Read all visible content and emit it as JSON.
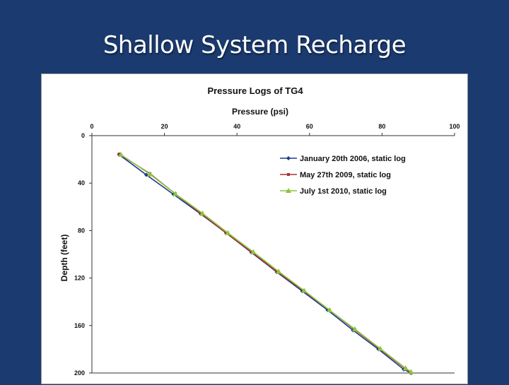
{
  "slide": {
    "title": "Shallow System Recharge"
  },
  "colors": {
    "background": "#1b3a6f",
    "series1": "#1f3a8c",
    "series2": "#a83232",
    "series3": "#8cc63f"
  },
  "chart_data": {
    "type": "line",
    "title": "Pressure Logs of TG4",
    "xlabel": "Pressure (psi)",
    "ylabel": "Depth (feet)",
    "xlim": [
      0,
      100
    ],
    "ylim": [
      0,
      200
    ],
    "y_inverted": true,
    "x_axis_position": "top",
    "xticks": [
      0,
      20,
      40,
      60,
      80,
      100
    ],
    "yticks": [
      0,
      40,
      80,
      120,
      160,
      200
    ],
    "legend_position": "top-right",
    "series": [
      {
        "name": "January 20th 2006, static log",
        "color": "#1f3a8c",
        "marker": "diamond",
        "points": [
          [
            7.5,
            16
          ],
          [
            15,
            33
          ],
          [
            22.5,
            49.5
          ],
          [
            30,
            66
          ],
          [
            37,
            82
          ],
          [
            44,
            98.5
          ],
          [
            51,
            115
          ],
          [
            58,
            131
          ],
          [
            65,
            147
          ],
          [
            72,
            164
          ],
          [
            79,
            180
          ],
          [
            86,
            197
          ],
          [
            88,
            200
          ]
        ]
      },
      {
        "name": "May 27th 2009, static log",
        "color": "#a83232",
        "marker": "square",
        "points": [
          [
            7.5,
            15.5
          ],
          [
            16,
            32
          ],
          [
            23,
            49
          ],
          [
            30,
            65.5
          ],
          [
            37,
            82
          ],
          [
            44,
            98
          ],
          [
            51,
            114.5
          ],
          [
            58.5,
            131
          ],
          [
            65.5,
            147
          ],
          [
            72.5,
            163.5
          ],
          [
            79.5,
            180
          ],
          [
            86.5,
            196.5
          ],
          [
            88,
            200
          ]
        ]
      },
      {
        "name": "July 1st 2010, static log",
        "color": "#8cc63f",
        "marker": "triangle",
        "points": [
          [
            8,
            16
          ],
          [
            16,
            32.5
          ],
          [
            23,
            49
          ],
          [
            30.5,
            65.5
          ],
          [
            37.5,
            82
          ],
          [
            44.5,
            98
          ],
          [
            51.5,
            114.5
          ],
          [
            58.5,
            130.5
          ],
          [
            65.5,
            147
          ],
          [
            72.5,
            163
          ],
          [
            79.5,
            179.5
          ],
          [
            86.5,
            196
          ],
          [
            88,
            199
          ]
        ]
      }
    ]
  }
}
